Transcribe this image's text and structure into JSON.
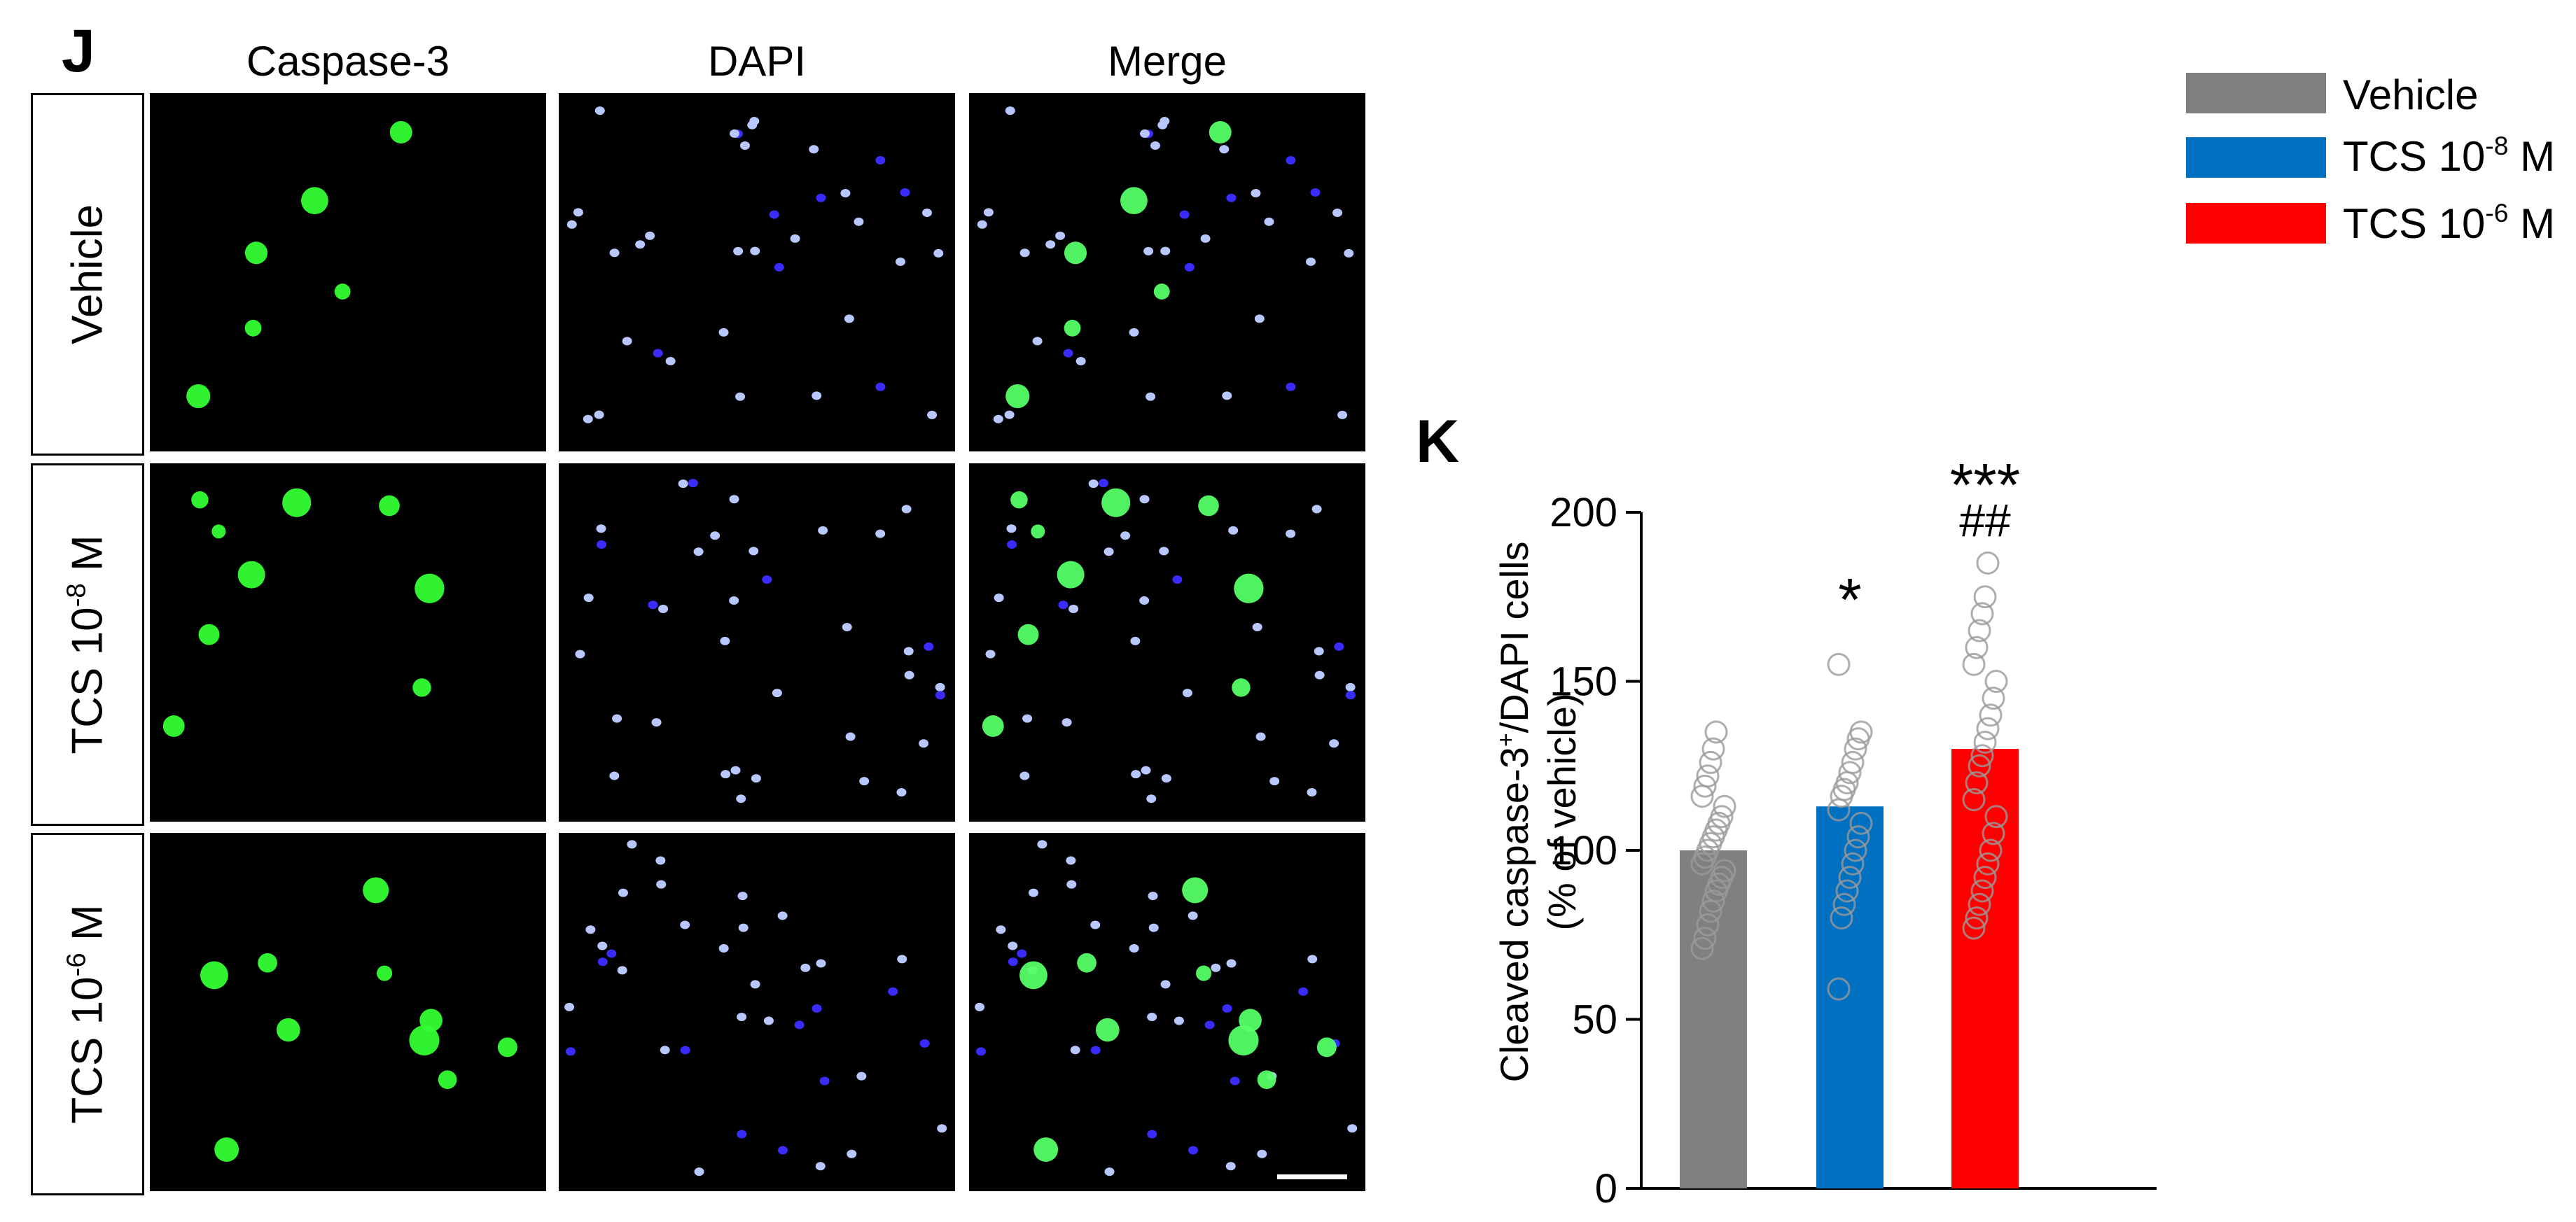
{
  "panel_j": {
    "letter": "J",
    "columns": [
      "Caspase-3",
      "DAPI",
      "Merge"
    ],
    "rows": [
      {
        "base": "Vehicle",
        "sup": "",
        "unit": ""
      },
      {
        "base": "TCS 10",
        "sup": "-8",
        "unit": " M"
      },
      {
        "base": "TCS 10",
        "sup": "-6",
        "unit": " M"
      }
    ],
    "colors": {
      "caspase": "#33ff33",
      "dapi": "#b8c8ff",
      "dapi_dim": "#3a2cff",
      "merge_green": "#55ff66"
    }
  },
  "legend": [
    {
      "base": "Vehicle",
      "sup": "",
      "unit": "",
      "color": "#808080"
    },
    {
      "base": "TCS 10",
      "sup": "-8",
      "unit": " M",
      "color": "#0070c0"
    },
    {
      "base": "TCS 10",
      "sup": "-6",
      "unit": " M",
      "color": "#ff0000"
    }
  ],
  "panel_k": {
    "letter": "K",
    "chart_data": {
      "type": "bar",
      "categories": [
        "Vehicle",
        "TCS 10-8 M",
        "TCS 10-6 M"
      ],
      "values": [
        100,
        113,
        130
      ],
      "colors": [
        "#808080",
        "#0070c0",
        "#ff0000"
      ],
      "ylabel_line1_base": "Cleaved caspase-3",
      "ylabel_line1_sup": "+",
      "ylabel_line1_tail": "/DAPI cells",
      "ylabel_line2": "(% of vehicle)",
      "ylim": [
        0,
        200
      ],
      "yticks": [
        0,
        50,
        100,
        150,
        200
      ],
      "annotations": [
        {
          "category": "TCS 10-8 M",
          "text": "*"
        },
        {
          "category": "TCS 10-6 M",
          "text": "***"
        },
        {
          "category": "TCS 10-6 M",
          "text": "##"
        }
      ],
      "points": [
        [
          71,
          74,
          78,
          82,
          85,
          88,
          90,
          92,
          94,
          96,
          98,
          100,
          102,
          104,
          106,
          108,
          110,
          113,
          116,
          119,
          122,
          126,
          130,
          135
        ],
        [
          59,
          80,
          84,
          88,
          92,
          96,
          100,
          104,
          108,
          112,
          116,
          118,
          120,
          123,
          126,
          130,
          133,
          135,
          155
        ],
        [
          77,
          80,
          84,
          88,
          92,
          96,
          100,
          105,
          110,
          115,
          120,
          125,
          128,
          132,
          136,
          140,
          145,
          150,
          155,
          160,
          165,
          170,
          175,
          185
        ]
      ]
    }
  }
}
